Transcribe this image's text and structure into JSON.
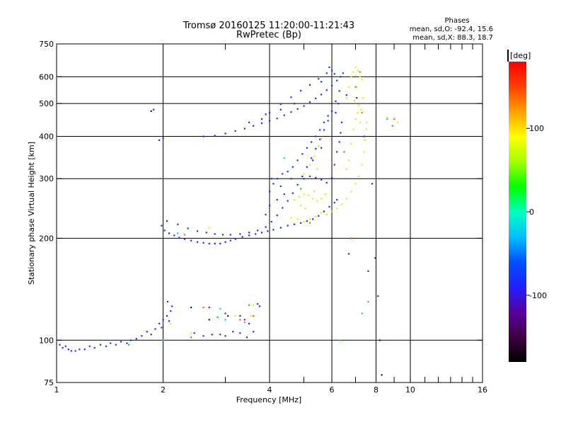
{
  "chart_data": {
    "type": "scatter",
    "title": "Tromsø 20160125 11:20:00-11:21:43",
    "subtitle": "RwPretec (Bp)",
    "xlabel": "Frequency [MHz]",
    "ylabel": "Stationary phase Virtual Height [km]",
    "x_scale": "log",
    "y_scale": "log",
    "xlim": [
      1,
      16
    ],
    "ylim": [
      75,
      750
    ],
    "x_ticks": [
      1,
      2,
      4,
      6,
      8,
      10,
      16
    ],
    "y_ticks": [
      75,
      100,
      200,
      300,
      400,
      500,
      600,
      750
    ],
    "x_minor_ticks": [
      3,
      5,
      7,
      9,
      11,
      12,
      13,
      14,
      15
    ],
    "grid_x": [
      2,
      4,
      6,
      8,
      10
    ],
    "grid_y": [
      100,
      200,
      300,
      400,
      500,
      600
    ],
    "stats": {
      "heading": "Phases",
      "line1": "mean, sd,O: -92.4, 15.6",
      "line2": "mean, sd,X:  88.3, 18.7"
    },
    "colorbar": {
      "label": "[deg]",
      "range": [
        -180,
        180
      ],
      "ticks": [
        100,
        0,
        -100
      ],
      "colors": [
        "#000000",
        "#400040",
        "#5a00a0",
        "#2020ff",
        "#0050ff",
        "#00c0ff",
        "#00ffc0",
        "#00ff00",
        "#a0ff00",
        "#ffff00",
        "#ffa000",
        "#ff4000",
        "#ff0000"
      ]
    },
    "series": [
      {
        "color": "#1030ff",
        "points": [
          [
            1.02,
            97
          ],
          [
            1.04,
            95
          ],
          [
            1.06,
            96
          ],
          [
            1.08,
            94
          ],
          [
            1.1,
            93
          ],
          [
            1.13,
            93
          ],
          [
            1.16,
            94
          ],
          [
            1.2,
            94
          ],
          [
            1.24,
            96
          ],
          [
            1.28,
            95
          ],
          [
            1.33,
            97
          ],
          [
            1.38,
            96
          ],
          [
            1.42,
            98
          ],
          [
            1.47,
            97
          ],
          [
            1.52,
            99
          ],
          [
            1.58,
            98
          ],
          [
            1.62,
            100
          ],
          [
            1.68,
            101
          ],
          [
            1.74,
            103
          ],
          [
            1.8,
            106
          ],
          [
            1.85,
            104
          ],
          [
            1.9,
            108
          ],
          [
            1.95,
            112
          ],
          [
            2.0,
            115
          ],
          [
            2.05,
            118
          ],
          [
            2.1,
            122
          ],
          [
            1.98,
            109
          ],
          [
            2.08,
            114
          ],
          [
            2.12,
            126
          ],
          [
            2.06,
            130
          ],
          [
            2.45,
            105
          ],
          [
            2.6,
            103
          ],
          [
            2.75,
            104
          ],
          [
            2.9,
            104
          ],
          [
            3.0,
            103
          ],
          [
            3.15,
            106
          ],
          [
            3.3,
            105
          ],
          [
            3.45,
            102
          ],
          [
            3.6,
            106
          ],
          [
            3.5,
            112
          ],
          [
            3.7,
            128
          ],
          [
            3.75,
            126
          ],
          [
            3.3,
            118
          ],
          [
            1.98,
            218
          ],
          [
            2.02,
            211
          ],
          [
            2.08,
            207
          ],
          [
            2.15,
            204
          ],
          [
            2.22,
            201
          ],
          [
            2.3,
            199
          ],
          [
            2.4,
            197
          ],
          [
            2.5,
            195
          ],
          [
            2.6,
            194
          ],
          [
            2.7,
            193
          ],
          [
            2.8,
            193
          ],
          [
            2.9,
            193
          ],
          [
            3.0,
            195
          ],
          [
            3.1,
            197
          ],
          [
            3.2,
            199
          ],
          [
            3.35,
            202
          ],
          [
            3.5,
            204
          ],
          [
            3.65,
            206
          ],
          [
            3.8,
            208
          ],
          [
            3.95,
            210
          ],
          [
            4.1,
            212
          ],
          [
            4.3,
            215
          ],
          [
            4.5,
            218
          ],
          [
            4.7,
            220
          ],
          [
            4.9,
            222
          ],
          [
            5.1,
            225
          ],
          [
            5.3,
            228
          ],
          [
            5.5,
            233
          ],
          [
            5.7,
            240
          ],
          [
            5.9,
            248
          ],
          [
            6.1,
            255
          ],
          [
            6.2,
            260
          ],
          [
            2.05,
            225
          ],
          [
            2.2,
            220
          ],
          [
            2.35,
            214
          ],
          [
            2.5,
            210
          ],
          [
            2.65,
            208
          ],
          [
            2.8,
            206
          ],
          [
            2.95,
            205
          ],
          [
            3.1,
            205
          ],
          [
            3.3,
            206
          ],
          [
            3.5,
            208
          ],
          [
            3.7,
            211
          ],
          [
            3.9,
            216
          ],
          [
            4.05,
            224
          ],
          [
            4.2,
            234
          ],
          [
            4.35,
            246
          ],
          [
            4.5,
            258
          ],
          [
            4.65,
            272
          ],
          [
            4.8,
            288
          ],
          [
            4.95,
            305
          ],
          [
            5.1,
            325
          ],
          [
            5.25,
            345
          ],
          [
            5.4,
            368
          ],
          [
            5.55,
            392
          ],
          [
            5.7,
            418
          ],
          [
            5.85,
            445
          ],
          [
            6.0,
            475
          ],
          [
            6.15,
            508
          ],
          [
            6.3,
            545
          ],
          [
            4.0,
            275
          ],
          [
            4.1,
            290
          ],
          [
            4.2,
            300
          ],
          [
            4.35,
            310
          ],
          [
            4.5,
            315
          ],
          [
            4.65,
            325
          ],
          [
            4.8,
            340
          ],
          [
            4.95,
            355
          ],
          [
            5.1,
            370
          ],
          [
            5.25,
            385
          ],
          [
            5.4,
            400
          ],
          [
            5.55,
            418
          ],
          [
            5.7,
            440
          ],
          [
            5.85,
            460
          ],
          [
            5.3,
            340
          ],
          [
            5.6,
            370
          ],
          [
            4.2,
            260
          ],
          [
            4.4,
            270
          ],
          [
            4.0,
            250
          ],
          [
            3.9,
            235
          ],
          [
            4.05,
            300
          ],
          [
            4.3,
            285
          ],
          [
            4.6,
            300
          ],
          [
            2.6,
            400
          ],
          [
            2.8,
            402
          ],
          [
            3.0,
            408
          ],
          [
            3.2,
            415
          ],
          [
            3.4,
            422
          ],
          [
            3.6,
            430
          ],
          [
            3.8,
            438
          ],
          [
            4.0,
            445
          ],
          [
            4.2,
            452
          ],
          [
            4.4,
            462
          ],
          [
            4.6,
            472
          ],
          [
            4.8,
            482
          ],
          [
            5.0,
            492
          ],
          [
            5.2,
            505
          ],
          [
            5.4,
            518
          ],
          [
            5.6,
            532
          ],
          [
            5.8,
            548
          ],
          [
            6.0,
            565
          ],
          [
            6.2,
            585
          ],
          [
            6.35,
            600
          ],
          [
            6.45,
            615
          ],
          [
            3.5,
            440
          ],
          [
            3.9,
            465
          ],
          [
            4.3,
            480
          ],
          [
            4.7,
            500
          ],
          [
            3.8,
            450
          ],
          [
            4.0,
            470
          ],
          [
            4.3,
            498
          ],
          [
            4.6,
            522
          ],
          [
            4.9,
            546
          ],
          [
            5.2,
            568
          ],
          [
            5.5,
            592
          ],
          [
            5.8,
            615
          ],
          [
            6.0,
            625
          ],
          [
            5.9,
            640
          ],
          [
            6.1,
            612
          ],
          [
            5.6,
            580
          ],
          [
            5.0,
            300
          ],
          [
            5.2,
            305
          ],
          [
            5.4,
            302
          ],
          [
            5.6,
            298
          ],
          [
            5.8,
            292
          ],
          [
            6.0,
            302
          ],
          [
            6.1,
            330
          ],
          [
            6.2,
            360
          ],
          [
            6.3,
            385
          ],
          [
            6.35,
            410
          ],
          [
            6.4,
            440
          ],
          [
            6.15,
            470
          ],
          [
            6.25,
            500
          ],
          [
            1.88,
            480
          ],
          [
            1.95,
            390
          ],
          [
            2.0,
            395
          ],
          [
            6.6,
            530
          ],
          [
            7.05,
            520
          ],
          [
            7.4,
            400
          ],
          [
            7.95,
            175
          ],
          [
            8.1,
            135
          ],
          [
            7.6,
            160
          ],
          [
            7.8,
            290
          ],
          [
            6.7,
            180
          ],
          [
            6.8,
            200
          ]
        ]
      },
      {
        "color": "#e0f000",
        "points": [
          [
            4.6,
            230
          ],
          [
            4.8,
            228
          ],
          [
            5.0,
            224
          ],
          [
            5.2,
            228
          ],
          [
            5.4,
            232
          ],
          [
            5.6,
            238
          ],
          [
            5.8,
            235
          ],
          [
            6.0,
            240
          ],
          [
            6.2,
            245
          ],
          [
            6.4,
            252
          ],
          [
            6.6,
            262
          ],
          [
            6.8,
            275
          ],
          [
            7.0,
            290
          ],
          [
            7.15,
            305
          ],
          [
            7.3,
            330
          ],
          [
            7.4,
            360
          ],
          [
            7.45,
            390
          ],
          [
            7.5,
            420
          ],
          [
            7.52,
            440
          ],
          [
            4.7,
            260
          ],
          [
            4.85,
            265
          ],
          [
            5.0,
            270
          ],
          [
            5.15,
            268
          ],
          [
            5.3,
            262
          ],
          [
            5.45,
            258
          ],
          [
            5.6,
            262
          ],
          [
            5.75,
            270
          ],
          [
            4.9,
            250
          ],
          [
            5.05,
            245
          ],
          [
            5.35,
            275
          ],
          [
            5.2,
            330
          ],
          [
            5.35,
            350
          ],
          [
            5.5,
            375
          ],
          [
            5.6,
            395
          ],
          [
            5.45,
            320
          ],
          [
            5.0,
            310
          ],
          [
            6.6,
            320
          ],
          [
            6.7,
            340
          ],
          [
            6.8,
            380
          ],
          [
            6.9,
            420
          ],
          [
            7.0,
            450
          ],
          [
            7.1,
            470
          ],
          [
            7.2,
            440
          ],
          [
            6.6,
            520
          ],
          [
            6.7,
            560
          ],
          [
            6.8,
            600
          ],
          [
            6.9,
            620
          ],
          [
            7.0,
            640
          ],
          [
            7.1,
            625
          ],
          [
            7.2,
            600
          ],
          [
            7.3,
            590
          ],
          [
            7.05,
            560
          ],
          [
            6.95,
            510
          ],
          [
            7.15,
            495
          ],
          [
            7.25,
            480
          ],
          [
            7.35,
            520
          ],
          [
            8.6,
            455
          ],
          [
            9.2,
            440
          ],
          [
            2.7,
            215
          ],
          [
            3.6,
            127
          ],
          [
            3.55,
            118
          ],
          [
            2.4,
            105
          ],
          [
            2.1,
            112
          ],
          [
            3.2,
            118
          ]
        ]
      },
      {
        "color": "#ff6000",
        "points": [
          [
            2.3,
            205
          ],
          [
            5.2,
            222
          ],
          [
            6.8,
            200
          ],
          [
            7.3,
            470
          ],
          [
            9.0,
            450
          ],
          [
            2.6,
            125
          ],
          [
            3.3,
            115
          ],
          [
            7.2,
            620
          ],
          [
            8.9,
            430
          ],
          [
            3.6,
            118
          ]
        ]
      },
      {
        "color": "#00c8ff",
        "points": [
          [
            2.0,
            100
          ],
          [
            2.2,
            207
          ],
          [
            3.4,
            113
          ],
          [
            7.6,
            130
          ],
          [
            8.6,
            450
          ],
          [
            3.0,
            115
          ],
          [
            7.3,
            120
          ],
          [
            2.9,
            124
          ],
          [
            4.4,
            345
          ]
        ]
      },
      {
        "color": "#00e000",
        "points": [
          [
            2.4,
            102
          ],
          [
            2.85,
            117
          ],
          [
            3.5,
            127
          ],
          [
            4.9,
            280
          ],
          [
            6.5,
            360
          ],
          [
            6.3,
            100
          ],
          [
            1.6,
            97
          ],
          [
            7.0,
            560
          ]
        ]
      },
      {
        "color": "#400050",
        "points": [
          [
            1.85,
            475
          ],
          [
            2.4,
            125
          ],
          [
            2.7,
            115
          ],
          [
            3.05,
            118
          ],
          [
            8.3,
            79
          ],
          [
            8.2,
            100
          ]
        ]
      },
      {
        "color": "#e00020",
        "points": [
          [
            2.7,
            125
          ],
          [
            3.0,
            120
          ],
          [
            3.4,
            115
          ]
        ]
      }
    ]
  }
}
